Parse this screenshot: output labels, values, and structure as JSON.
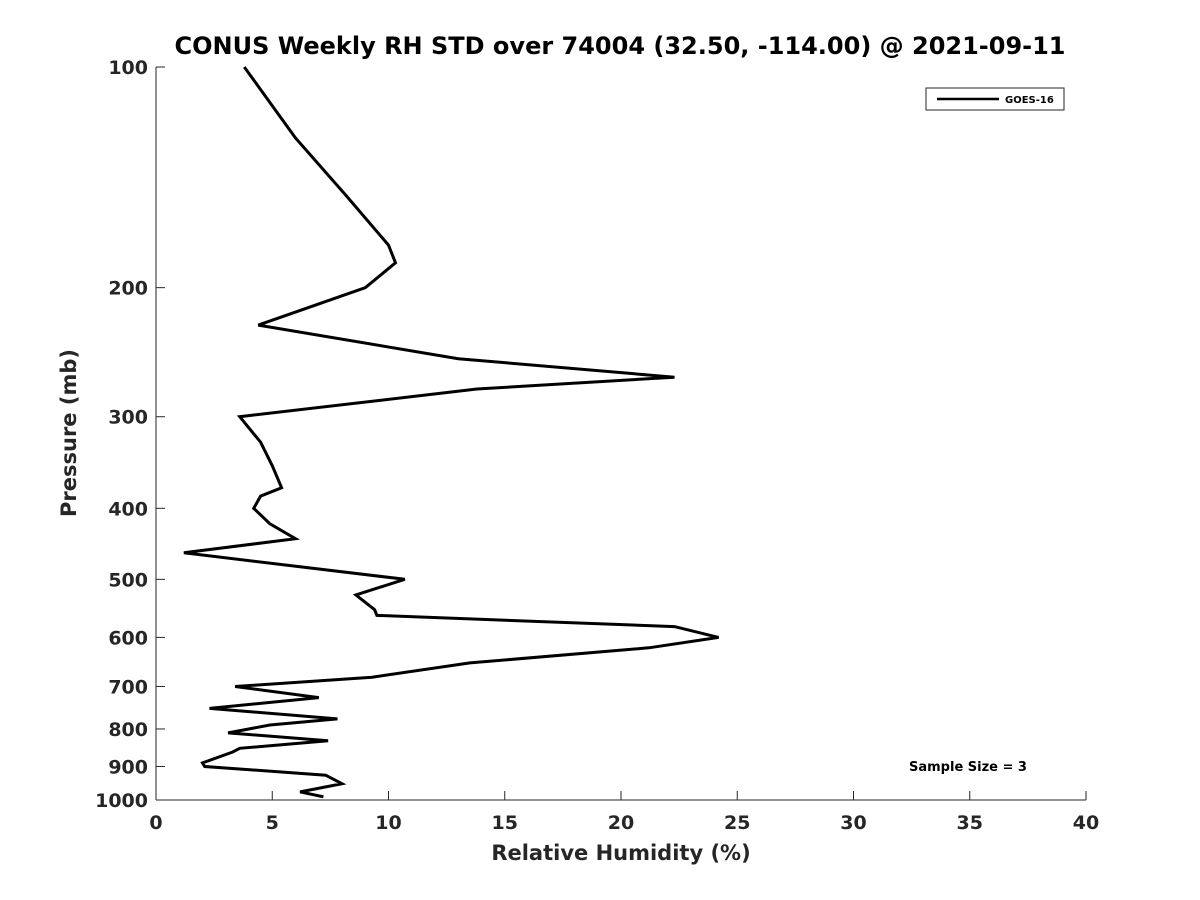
{
  "chart_data": {
    "type": "line",
    "title": "CONUS Weekly RH STD over 74004 (32.50, -114.00) @ 2021-09-11",
    "xlabel": "Relative Humidity (%)",
    "ylabel": "Pressure (mb)",
    "xlim": [
      0,
      40
    ],
    "ylim": [
      100,
      1000
    ],
    "y_scale": "log",
    "y_reversed": true,
    "xticks": [
      0,
      5,
      10,
      15,
      20,
      25,
      30,
      35,
      40
    ],
    "xtick_labels": [
      "0",
      "5",
      "10",
      "15",
      "20",
      "25",
      "30",
      "35",
      "40"
    ],
    "yticks": [
      100,
      200,
      300,
      400,
      500,
      600,
      700,
      800,
      900,
      1000
    ],
    "ytick_labels": [
      "100",
      "200",
      "300",
      "400",
      "500",
      "600",
      "700",
      "800",
      "900",
      "1000"
    ],
    "grid": false,
    "legend_position": "top-right",
    "annotation": "Sample Size = 3",
    "series": [
      {
        "name": "GOES-16",
        "color": "#000000",
        "x": [
          3.8,
          6.0,
          8.2,
          10.0,
          10.3,
          9.0,
          4.4,
          13.0,
          22.3,
          13.8,
          3.6,
          4.5,
          5.0,
          5.4,
          4.5,
          4.2,
          4.9,
          6.0,
          1.2,
          10.7,
          8.6,
          9.4,
          9.5,
          22.3,
          24.2,
          21.2,
          13.5,
          9.3,
          3.4,
          7.0,
          2.3,
          7.8,
          4.9,
          3.1,
          7.4,
          3.6,
          3.3,
          2.0,
          2.1,
          7.3,
          8.0,
          6.2,
          7.2
        ],
        "y": [
          100,
          125,
          150,
          175,
          185,
          200,
          225,
          250,
          265,
          275,
          300,
          325,
          350,
          375,
          385,
          400,
          420,
          440,
          460,
          500,
          525,
          550,
          560,
          580,
          600,
          620,
          650,
          680,
          700,
          725,
          750,
          775,
          790,
          810,
          830,
          850,
          860,
          890,
          900,
          925,
          950,
          975,
          990
        ]
      }
    ]
  }
}
